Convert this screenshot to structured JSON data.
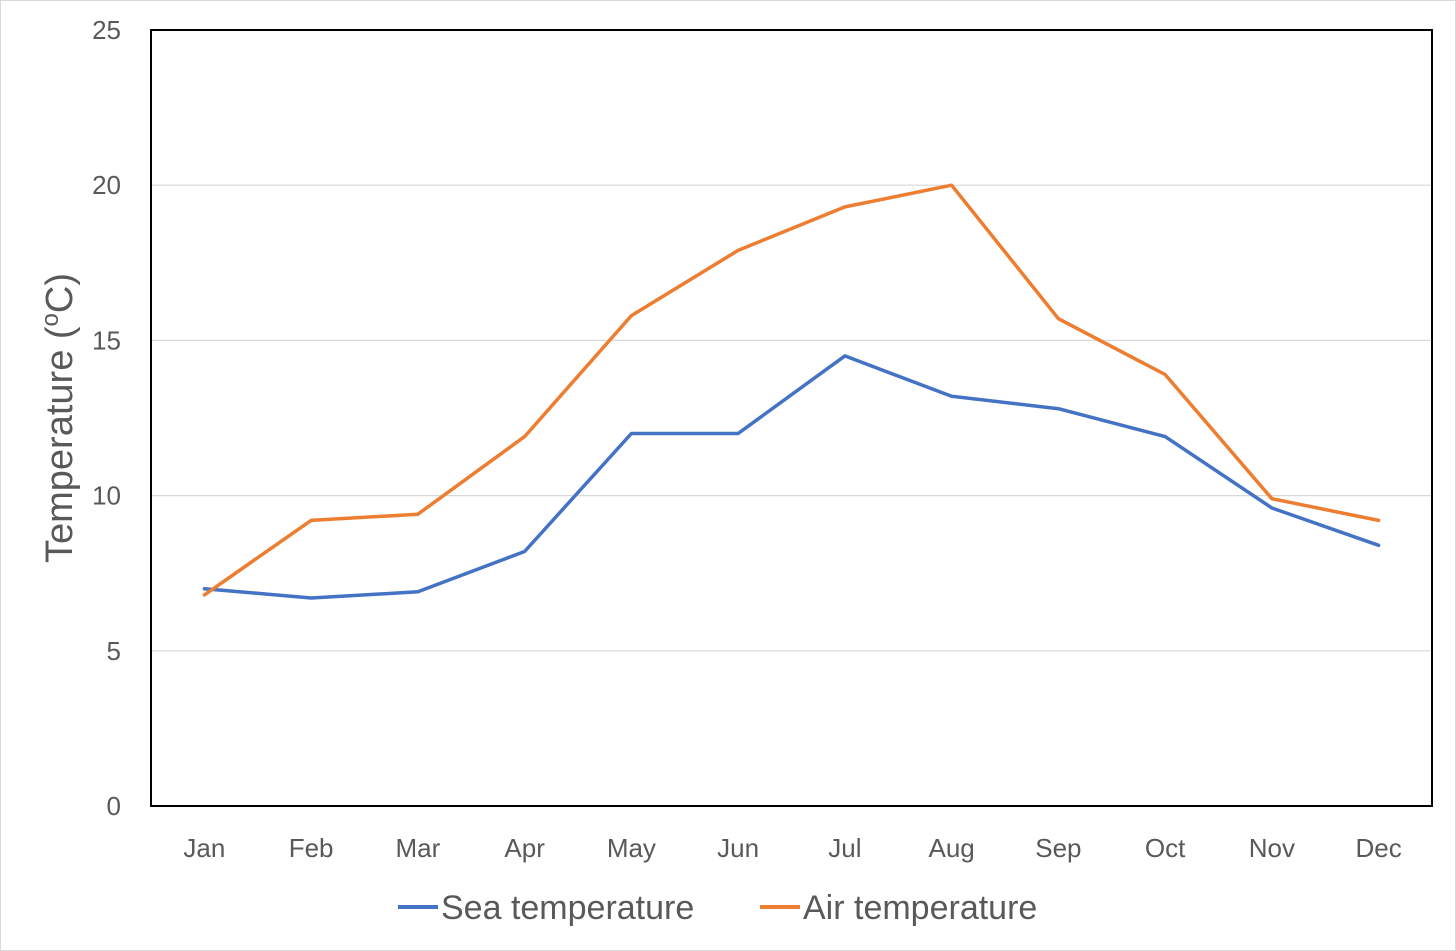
{
  "chart_data": {
    "type": "line",
    "title": "",
    "xlabel": "",
    "ylabel": "Temperature (oC)",
    "categories": [
      "Jan",
      "Feb",
      "Mar",
      "Apr",
      "May",
      "Jun",
      "Jul",
      "Aug",
      "Sep",
      "Oct",
      "Nov",
      "Dec"
    ],
    "ylim": [
      0,
      25
    ],
    "yticks": [
      0,
      5,
      10,
      15,
      20,
      25
    ],
    "grid": true,
    "legend_position": "bottom",
    "series": [
      {
        "name": "Sea temperature",
        "color": "#4472c4",
        "values": [
          7.0,
          6.7,
          6.9,
          8.2,
          12.0,
          12.0,
          14.5,
          13.2,
          12.8,
          11.9,
          9.6,
          8.4
        ]
      },
      {
        "name": "Air temperature",
        "color": "#ed7d31",
        "values": [
          6.8,
          9.2,
          9.4,
          11.9,
          15.8,
          17.9,
          19.3,
          20.0,
          15.7,
          13.9,
          9.9,
          9.2
        ]
      }
    ]
  }
}
